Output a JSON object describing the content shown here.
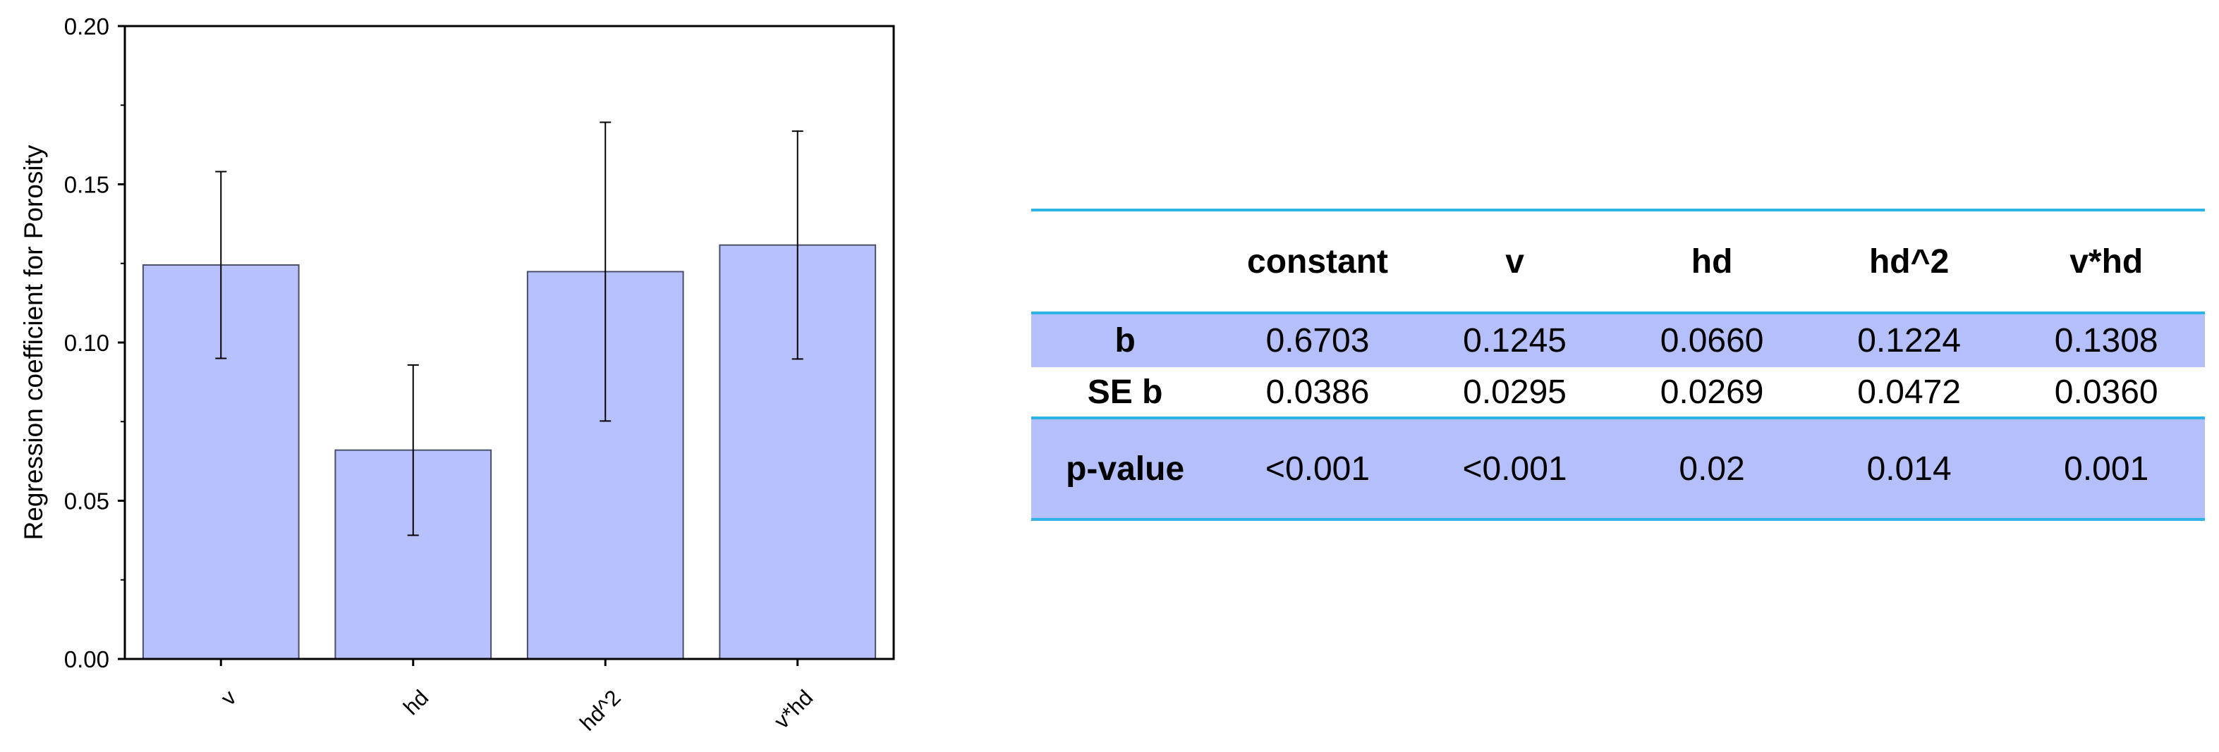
{
  "chart_data": {
    "type": "bar",
    "categories": [
      "v",
      "hd",
      "hd^2",
      "v*hd"
    ],
    "values": [
      0.1245,
      0.066,
      0.1224,
      0.1308
    ],
    "errors": [
      0.0295,
      0.0269,
      0.0472,
      0.036
    ],
    "ylabel": "Regression coefficient for Porosity",
    "xlabel": "",
    "ylim": [
      0,
      0.2
    ],
    "yticks": [
      "0.00",
      "0.05",
      "0.10",
      "0.15",
      "0.20"
    ],
    "bar_color": "#b7c1fb",
    "bar_edge_color": "#4a4f6a",
    "grid": false
  },
  "table": {
    "columns": [
      "",
      "constant",
      "v",
      "hd",
      "hd^2",
      "v*hd"
    ],
    "rows": [
      {
        "label": "b",
        "values": [
          "0.6703",
          "0.1245",
          "0.0660",
          "0.1224",
          "0.1308"
        ]
      },
      {
        "label": "SE b",
        "values": [
          "0.0386",
          "0.0295",
          "0.0269",
          "0.0472",
          "0.0360"
        ]
      },
      {
        "label": "p-value",
        "values": [
          "<0.001",
          "<0.001",
          "0.02",
          "0.014",
          "0.001"
        ]
      }
    ],
    "rule_color": "#2eb3e6",
    "shade_color": "#b5c0fb"
  }
}
